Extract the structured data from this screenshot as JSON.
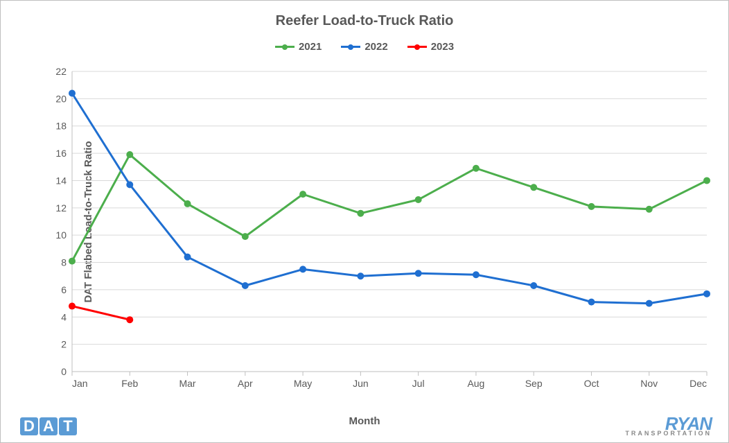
{
  "chart": {
    "type": "line",
    "title": "Reefer Load-to-Truck Ratio",
    "title_fontsize": 20,
    "title_color": "#595959",
    "x_label": "Month",
    "y_label": "DAT Flatbed Load-to-Truck Ratio",
    "axis_label_fontsize": 15,
    "tick_fontsize": 14,
    "background_color": "#ffffff",
    "border_color": "#bfbfbf",
    "grid_color": "#d9d9d9",
    "axis_line_color": "#bfbfbf",
    "tick_color": "#595959",
    "categories": [
      "Jan",
      "Feb",
      "Mar",
      "Apr",
      "May",
      "Jun",
      "Jul",
      "Aug",
      "Sep",
      "Oct",
      "Nov",
      "Dec"
    ],
    "ylim": [
      0,
      22
    ],
    "ytick_step": 2,
    "line_width": 3,
    "marker_radius": 5,
    "series": [
      {
        "name": "2021",
        "color": "#4cae4c",
        "values": [
          8.1,
          15.9,
          12.3,
          9.9,
          13.0,
          11.6,
          12.6,
          14.9,
          13.5,
          12.1,
          11.9,
          14.0
        ]
      },
      {
        "name": "2022",
        "color": "#1f6fd1",
        "values": [
          20.4,
          13.7,
          8.4,
          6.3,
          7.5,
          7.0,
          7.2,
          7.1,
          6.3,
          5.1,
          5.0,
          5.7
        ]
      },
      {
        "name": "2023",
        "color": "#ff0000",
        "values": [
          4.8,
          3.8
        ]
      }
    ]
  },
  "legend": {
    "fontsize": 15,
    "text_color": "#595959"
  },
  "logos": {
    "left": {
      "letters": [
        "D",
        "A",
        "T"
      ],
      "box_color": "#5b9bd5",
      "text_color": "#ffffff"
    },
    "right": {
      "line1": "RYAN",
      "line2": "TRANSPORTATION",
      "color1": "#5b9bd5",
      "color2": "#888888"
    }
  }
}
